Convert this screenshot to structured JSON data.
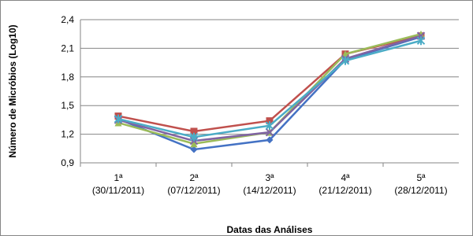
{
  "chart_data": {
    "type": "line",
    "y_label": "Número de Micróbios (Log10)",
    "x_label": "Datas das Análises",
    "categories": [
      "1ª\n(30/11/2011)",
      "2ª\n(07/12/2011)",
      "3ª\n(14/12/2011)",
      "4ª\n(21/12/2011)",
      "5ª\n(28/12/2011)"
    ],
    "series": [
      {
        "color": "#4472c4",
        "marker": "diamond",
        "values": [
          1.36,
          1.04,
          1.14,
          1.98,
          2.22
        ]
      },
      {
        "color": "#c0504d",
        "marker": "square",
        "values": [
          1.39,
          1.23,
          1.34,
          2.04,
          2.23
        ]
      },
      {
        "color": "#9bbb59",
        "marker": "triangle",
        "values": [
          1.32,
          1.1,
          1.22,
          2.04,
          2.25
        ]
      },
      {
        "color": "#8064a2",
        "marker": "x",
        "values": [
          1.35,
          1.13,
          1.22,
          1.99,
          2.23
        ]
      },
      {
        "color": "#4bacc6",
        "marker": "star",
        "values": [
          1.36,
          1.17,
          1.29,
          1.97,
          2.18
        ]
      }
    ],
    "ylim": [
      0.9,
      2.4
    ],
    "yticks": [
      {
        "value": 0.9,
        "label": "0,9"
      },
      {
        "value": 1.2,
        "label": "1,2"
      },
      {
        "value": 1.5,
        "label": "1,5"
      },
      {
        "value": 1.8,
        "label": "1,8"
      },
      {
        "value": 2.1,
        "label": "2,1"
      },
      {
        "value": 2.4,
        "label": "2,4"
      }
    ],
    "grid": true
  }
}
